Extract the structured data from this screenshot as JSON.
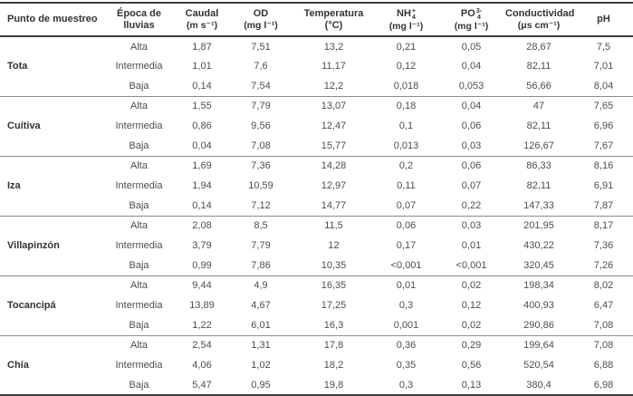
{
  "chart_data": {
    "type": "table",
    "columns": [
      {
        "label": "Punto de muestreo"
      },
      {
        "label": "Época de lluvias"
      },
      {
        "label": "Caudal",
        "unit": "(m s⁻¹)"
      },
      {
        "label": "OD",
        "unit": "(mg l⁻¹)"
      },
      {
        "label": "Temperatura (°C)"
      },
      {
        "base": "NH",
        "sub": "4",
        "sup": "+",
        "unit": "(mg l⁻¹)"
      },
      {
        "base": "PO",
        "sub": "4",
        "sup": "3-",
        "unit": "(mg l⁻¹)"
      },
      {
        "label": "Conductividad",
        "unit": "(μs cm⁻¹)"
      },
      {
        "label": "pH"
      }
    ],
    "groups": [
      {
        "site": "Tota",
        "rows": [
          {
            "season": "Alta",
            "values": [
              "1,87",
              "7,51",
              "13,2",
              "0,21",
              "0,05",
              "28,67",
              "7,5"
            ]
          },
          {
            "season": "Intermedia",
            "values": [
              "1,01",
              "7,6",
              "11,17",
              "0,12",
              "0,04",
              "82,11",
              "7,01"
            ]
          },
          {
            "season": "Baja",
            "values": [
              "0,14",
              "7,54",
              "12,2",
              "0,018",
              "0,053",
              "56,66",
              "8,04"
            ]
          }
        ]
      },
      {
        "site": "Cuítiva",
        "rows": [
          {
            "season": "Alta",
            "values": [
              "1,55",
              "7,79",
              "13,07",
              "0,18",
              "0,04",
              "47",
              "7,65"
            ]
          },
          {
            "season": "Intermedia",
            "values": [
              "0,86",
              "9,56",
              "12,47",
              "0,1",
              "0,06",
              "82,11",
              "6,96"
            ]
          },
          {
            "season": "Baja",
            "values": [
              "0,04",
              "7,08",
              "15,77",
              "0,013",
              "0,03",
              "126,67",
              "7,67"
            ]
          }
        ]
      },
      {
        "site": "Iza",
        "rows": [
          {
            "season": "Alta",
            "values": [
              "1,69",
              "7,36",
              "14,28",
              "0,2",
              "0,06",
              "86,33",
              "8,16"
            ]
          },
          {
            "season": "Intermedia",
            "values": [
              "1,94",
              "10,59",
              "12,97",
              "0,11",
              "0,07",
              "82,11",
              "6,91"
            ]
          },
          {
            "season": "Baja",
            "values": [
              "0,14",
              "7,12",
              "14,77",
              "0,07",
              "0,22",
              "147,33",
              "7,87"
            ]
          }
        ]
      },
      {
        "site": "Villapinzón",
        "rows": [
          {
            "season": "Alta",
            "values": [
              "2,08",
              "8,5",
              "11,5",
              "0,06",
              "0,03",
              "201,95",
              "8,17"
            ]
          },
          {
            "season": "Intermedia",
            "values": [
              "3,79",
              "7,79",
              "12",
              "0,17",
              "0,01",
              "430,22",
              "7,36"
            ]
          },
          {
            "season": "Baja",
            "values": [
              "0,99",
              "7,86",
              "10,35",
              "<0,001",
              "<0,001",
              "320,45",
              "7,26"
            ]
          }
        ]
      },
      {
        "site": "Tocancipá",
        "rows": [
          {
            "season": "Alta",
            "values": [
              "9,44",
              "4,9",
              "16,35",
              "0,01",
              "0,02",
              "198,34",
              "8,02"
            ]
          },
          {
            "season": "Intermedia",
            "values": [
              "13,89",
              "4,67",
              "17,25",
              "0,3",
              "0,12",
              "400,93",
              "6,47"
            ]
          },
          {
            "season": "Baja",
            "values": [
              "1,22",
              "6,01",
              "16,3",
              "0,001",
              "0,02",
              "290,86",
              "7,08"
            ]
          }
        ]
      },
      {
        "site": "Chía",
        "rows": [
          {
            "season": "Alta",
            "values": [
              "2,54",
              "1,31",
              "17,8",
              "0,36",
              "0,29",
              "199,64",
              "7,08"
            ]
          },
          {
            "season": "Intermedia",
            "values": [
              "4,06",
              "1,02",
              "18,2",
              "0,35",
              "0,56",
              "520,54",
              "6,88"
            ]
          },
          {
            "season": "Baja",
            "values": [
              "5,47",
              "0,95",
              "19,8",
              "0,3",
              "0,13",
              "380,4",
              "6,98"
            ]
          }
        ]
      }
    ]
  }
}
